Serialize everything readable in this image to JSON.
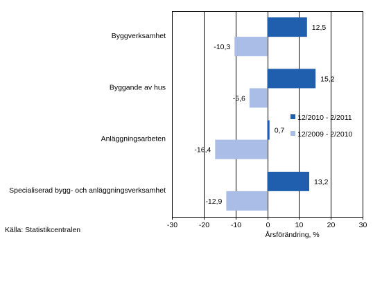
{
  "chart_data": {
    "type": "bar",
    "orientation": "horizontal",
    "categories": [
      "Byggverksamhet",
      "Byggande av hus",
      "Anläggningsarbeten",
      "Specialiserad bygg- och anläggningsverksamhet"
    ],
    "series": [
      {
        "name": "12/2010 - 2/2011",
        "values": [
          12.5,
          15.2,
          0.7,
          13.2
        ],
        "labels": [
          "12,5",
          "15,2",
          "0,7",
          "13,2"
        ],
        "color": "#1f5fad"
      },
      {
        "name": "12/2009 - 2/2010",
        "values": [
          -10.3,
          -5.6,
          -16.4,
          -12.9
        ],
        "labels": [
          "-10,3",
          "-5,6",
          "-16,4",
          "-12,9"
        ],
        "color": "#a9bde6"
      }
    ],
    "xlabel": "Årsförändring, %",
    "xlim": [
      -30,
      30
    ],
    "xticks": [
      -30,
      -20,
      -10,
      0,
      10,
      20,
      30
    ],
    "xtick_labels": [
      "-30",
      "-20",
      "-10",
      "0",
      "10",
      "20",
      "30"
    ],
    "grid": true,
    "legend_position": "right"
  },
  "source": "Källa: Statistikcentralen"
}
